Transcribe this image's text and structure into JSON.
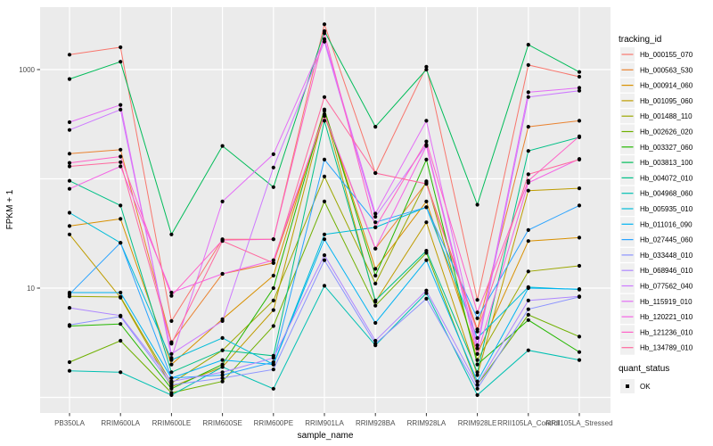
{
  "figure": {
    "background": "#FFFFFF",
    "panel_background": "#EBEBEB",
    "grid_color": "#FFFFFF",
    "tick_color": "#333333",
    "tick_label_color": "#4D4D4D",
    "point_color": "#000000"
  },
  "chart_data": {
    "type": "line",
    "title": "",
    "xlabel": "sample_name",
    "ylabel": "FPKM + 1",
    "y_scale": "log10",
    "y_tick_labels": [
      "10",
      "1000"
    ],
    "y_tick_values": [
      10,
      1000
    ],
    "y_gridline_values": [
      1,
      10,
      100,
      1000
    ],
    "ylim": [
      0.75,
      3600
    ],
    "grid": "on",
    "legend_position": "right",
    "categories": [
      "PB350LA",
      "RRIM600LA",
      "RRIM600LE",
      "RRIM600SE",
      "RRIM600PE",
      "RRIM901LA",
      "RRIM928BA",
      "RRIM928LA",
      "RRIM928LE",
      "RRII105LA_Control",
      "RRII105LA_Stressed"
    ],
    "series": [
      {
        "name": "Hb_000155_070",
        "color": "#F8766D",
        "values": [
          1370,
          1600,
          5.0,
          28,
          28,
          2600,
          113,
          1060,
          7.8,
          1100,
          860
        ]
      },
      {
        "name": "Hb_000563_530",
        "color": "#EA8331",
        "values": [
          170,
          185,
          3.2,
          13.5,
          17,
          375,
          23,
          92,
          4.2,
          300,
          340
        ]
      },
      {
        "name": "Hb_000914_060",
        "color": "#D89000",
        "values": [
          37,
          43,
          2.0,
          5.2,
          13,
          430,
          15,
          62,
          2.5,
          27,
          29
        ]
      },
      {
        "name": "Hb_001095_060",
        "color": "#BE9C00",
        "values": [
          31,
          8.2,
          1.25,
          1.9,
          6.3,
          420,
          7.5,
          40,
          1.6,
          78,
          82
        ]
      },
      {
        "name": "Hb_001488_110",
        "color": "#9CA700",
        "values": [
          8.4,
          8.3,
          1.35,
          2.7,
          7.7,
          105,
          11,
          95,
          2.2,
          14.2,
          16
        ]
      },
      {
        "name": "Hb_002626_020",
        "color": "#6FB000",
        "values": [
          2.1,
          3.3,
          1.1,
          1.4,
          4.5,
          62,
          6.9,
          21,
          1.3,
          5.7,
          3.6
        ]
      },
      {
        "name": "Hb_003327_060",
        "color": "#24B700",
        "values": [
          4.5,
          4.7,
          1.2,
          2.0,
          10,
          430,
          13,
          150,
          2.0,
          5.1,
          2.6
        ]
      },
      {
        "name": "Hb_003813_100",
        "color": "#00BC59",
        "values": [
          820,
          1180,
          31,
          200,
          84,
          2250,
          300,
          1000,
          58,
          1690,
          950
        ]
      },
      {
        "name": "Hb_004072_010",
        "color": "#00C087",
        "values": [
          96,
          57,
          1.7,
          2.7,
          2.4,
          340,
          7.7,
          22,
          1.7,
          180,
          240
        ]
      },
      {
        "name": "Hb_004968_060",
        "color": "#00C0B2",
        "values": [
          1.75,
          1.7,
          1.05,
          1.9,
          1.2,
          10.5,
          3.0,
          9.0,
          1.05,
          2.7,
          2.2
        ]
      },
      {
        "name": "Hb_005935_010",
        "color": "#00BCD8",
        "values": [
          49,
          26,
          2.2,
          3.5,
          2.0,
          31,
          36,
          55,
          3.5,
          10.2,
          9.7
        ]
      },
      {
        "name": "Hb_011016_090",
        "color": "#00B3F2",
        "values": [
          9.1,
          9.1,
          1.5,
          2.2,
          2.0,
          28,
          4.8,
          18,
          1.4,
          10,
          9.8
        ]
      },
      {
        "name": "Hb_027445_060",
        "color": "#29A3FF",
        "values": [
          8.8,
          26,
          1.5,
          1.6,
          2.1,
          150,
          40,
          55,
          5.3,
          34,
          57
        ]
      },
      {
        "name": "Hb_033448_010",
        "color": "#8B93FF",
        "values": [
          4.6,
          5.5,
          1.3,
          1.5,
          1.8,
          18,
          3.1,
          8.0,
          1.2,
          6.4,
          8.3
        ]
      },
      {
        "name": "Hb_068946_010",
        "color": "#AE87FF",
        "values": [
          6.6,
          5.6,
          1.4,
          1.7,
          2.3,
          20,
          3.3,
          9.5,
          1.3,
          7.7,
          8.4
        ]
      },
      {
        "name": "Hb_077562_040",
        "color": "#CD79FF",
        "values": [
          280,
          430,
          2.5,
          5.0,
          127,
          1800,
          45,
          205,
          2.8,
          560,
          640
        ]
      },
      {
        "name": "Hb_115919_010",
        "color": "#E36EF6",
        "values": [
          330,
          475,
          2.3,
          62,
          168,
          1900,
          48,
          340,
          3.0,
          620,
          680
        ]
      },
      {
        "name": "Hb_120221_010",
        "color": "#F464E5",
        "values": [
          81,
          130,
          9.1,
          13.5,
          18,
          390,
          23,
          200,
          2.5,
          92,
          152
        ]
      },
      {
        "name": "Hb_121236_010",
        "color": "#FF61C7",
        "values": [
          140,
          160,
          8.5,
          27.5,
          28,
          2150,
          36,
          220,
          6.0,
          96,
          245
        ]
      },
      {
        "name": "Hb_134789_010",
        "color": "#FF689E",
        "values": [
          130,
          142,
          3.1,
          27,
          17,
          560,
          113,
          90,
          4.0,
          110,
          150
        ]
      }
    ],
    "legend": {
      "tracking_id_title": "tracking_id",
      "quant_status_title": "quant_status",
      "quant_status_items": [
        {
          "label": "OK"
        }
      ]
    }
  }
}
